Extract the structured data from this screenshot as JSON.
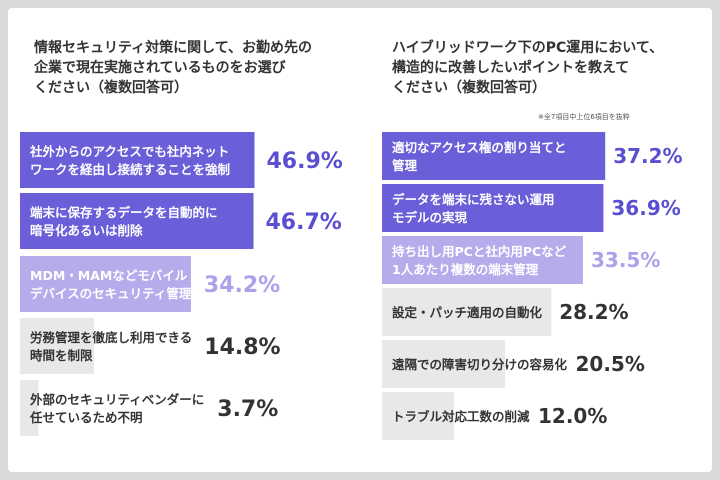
{
  "colors": {
    "tier1": "#6a5fd8",
    "tier2": "#b5acec",
    "tier3": "#e8e8e8",
    "text_light": "#ffffff",
    "text_dark": "#333333",
    "value_tier1": "#5a4fd0",
    "value_tier2": "#aaa2ea",
    "value_tier3": "#333333"
  },
  "left": {
    "title": "情報セキュリティ対策に関して、お勤め先の\n企業で現在実施されているものをお選び\nください（複数回答可）"
  },
  "right": {
    "title": "ハイブリッドワーク下のPC運用において、\n構造的に改善したいポイントを教えて\nください（複数回答可）",
    "note": "※全7項目中上位6項目を抜粋"
  },
  "chart_data": [
    {
      "type": "bar",
      "orientation": "horizontal",
      "categories": [
        "社外からのアクセスでも社内ネット\nワークを経由し接続することを強制",
        "端末に保存するデータを自動的に\n暗号化あるいは削除",
        "MDM・MAMなどモバイル\nデバイスのセキュリティ管理",
        "労務管理を徹底し利用できる\n時間を制限",
        "外部のセキュリティベンダーに\n任せているため不明"
      ],
      "values": [
        46.9,
        46.7,
        34.2,
        14.8,
        3.7
      ],
      "value_labels": [
        "46.9%",
        "46.7%",
        "34.2%",
        "14.8%",
        "3.7%"
      ],
      "tiers": [
        1,
        1,
        2,
        3,
        3
      ],
      "unit": "%",
      "xlim": [
        0,
        50
      ]
    },
    {
      "type": "bar",
      "orientation": "horizontal",
      "categories": [
        "適切なアクセス権の割り当てと\n管理",
        "データを端末に残さない運用\nモデルの実現",
        "持ち出し用PCと社内用PCなど\n1人あたり複数の端末管理",
        "設定・パッチ適用の自動化",
        "遠隔での障害切り分けの容易化",
        "トラブル対応工数の削減"
      ],
      "values": [
        37.2,
        36.9,
        33.5,
        28.2,
        20.5,
        12.0
      ],
      "value_labels": [
        "37.2%",
        "36.9%",
        "33.5%",
        "28.2%",
        "20.5%",
        "12.0%"
      ],
      "tiers": [
        1,
        1,
        2,
        3,
        3,
        3
      ],
      "unit": "%",
      "xlim": [
        0,
        40
      ]
    }
  ]
}
